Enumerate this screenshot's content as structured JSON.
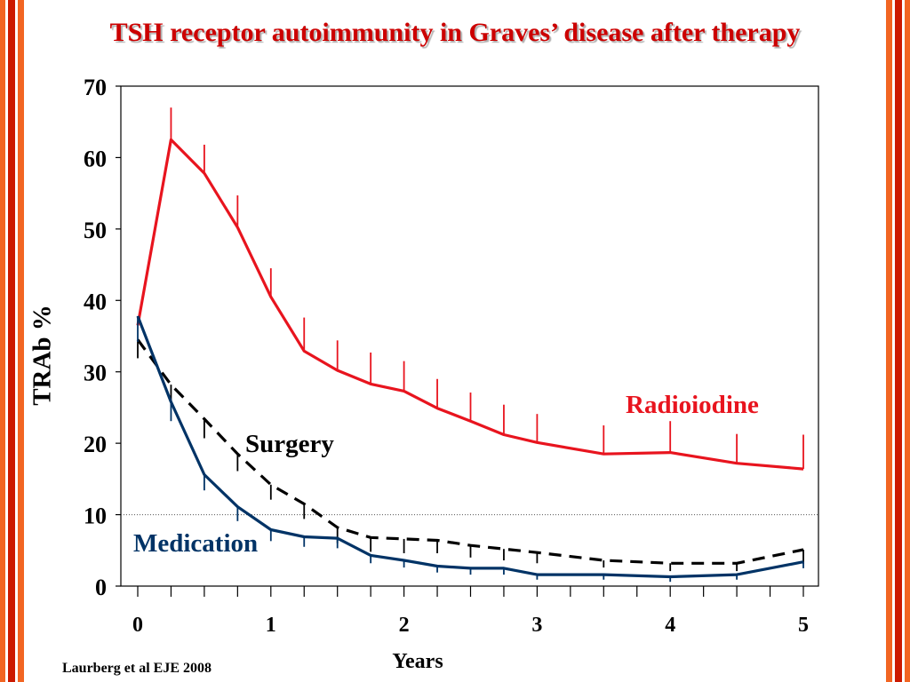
{
  "title": "TSH receptor autoimmunity in Graves’ disease after therapy",
  "citation": "Laurberg et al EJE 2008",
  "colors": {
    "accent_red": "#e8141e",
    "navy": "#003366",
    "black": "#000000",
    "border_orange": "#f26522",
    "border_red": "#cc1a00"
  },
  "chart_data": {
    "type": "line",
    "title": "TSH receptor autoimmunity in Graves’ disease after therapy",
    "xlabel": "Years",
    "ylabel": "TRAb %",
    "xlim": [
      0,
      5
    ],
    "ylim": [
      0,
      70
    ],
    "xticks": [
      0,
      1,
      2,
      3,
      4,
      5
    ],
    "yticks": [
      0,
      10,
      20,
      30,
      40,
      50,
      60,
      70
    ],
    "reference_line": 10,
    "series": [
      {
        "name": "Radioiodine",
        "color": "#e8141e",
        "style": "solid",
        "x": [
          0,
          0.25,
          0.5,
          0.75,
          1,
          1.25,
          1.5,
          1.75,
          2,
          2.25,
          2.5,
          2.75,
          3,
          3.5,
          4,
          4.5,
          5
        ],
        "y": [
          36.5,
          62.5,
          57.8,
          50.2,
          40.5,
          32.9,
          30.2,
          28.3,
          27.3,
          24.9,
          23.1,
          21.2,
          20.1,
          18.5,
          18.7,
          17.2,
          16.4
        ],
        "error": [
          0,
          4.5,
          4,
          4.5,
          4,
          4.7,
          4.2,
          4.4,
          4.2,
          4.1,
          4,
          4.2,
          4,
          4,
          4.4,
          4.1,
          4.8
        ]
      },
      {
        "name": "Surgery",
        "color": "#000000",
        "style": "dashed",
        "x": [
          0,
          0.25,
          0.5,
          0.75,
          1,
          1.25,
          1.5,
          1.75,
          2,
          2.25,
          2.5,
          2.75,
          3,
          3.5,
          4,
          4.5,
          5
        ],
        "y": [
          34.5,
          28.2,
          23.4,
          18.5,
          14.2,
          11.5,
          8.2,
          6.8,
          6.6,
          6.4,
          5.7,
          5.2,
          4.7,
          3.6,
          3.2,
          3.2,
          5.1
        ],
        "error": [
          2.6,
          2.9,
          2.7,
          2.4,
          2.1,
          2.1,
          2.2,
          2,
          2,
          1.8,
          1.7,
          1.6,
          1.5,
          1,
          1.1,
          1.1,
          2
        ]
      },
      {
        "name": "Medication",
        "color": "#003366",
        "style": "solid",
        "x": [
          0,
          0.25,
          0.5,
          0.75,
          1,
          1.25,
          1.5,
          1.75,
          2,
          2.25,
          2.5,
          2.75,
          3,
          3.5,
          4,
          4.5,
          5
        ],
        "y": [
          37.8,
          25.8,
          15.6,
          11.1,
          7.9,
          6.9,
          6.7,
          4.3,
          3.6,
          2.8,
          2.5,
          2.5,
          1.6,
          1.6,
          1.3,
          1.6,
          3.4
        ],
        "error": [
          3.6,
          2.7,
          2.2,
          2,
          1.6,
          1.4,
          1.4,
          1.1,
          1,
          0.9,
          0.9,
          0.9,
          0.7,
          0.7,
          0.7,
          0.7,
          0.9
        ]
      }
    ]
  }
}
